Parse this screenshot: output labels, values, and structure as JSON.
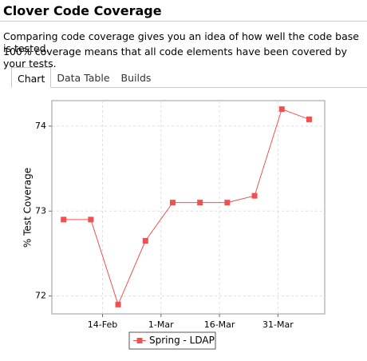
{
  "header": {
    "title": "Clover Code Coverage"
  },
  "description": [
    "Comparing code coverage gives you an idea of how well the code base is tested.",
    "100% coverage means that all code elements have been covered by your tests."
  ],
  "tabs": [
    "Chart",
    "Data Table",
    "Builds"
  ],
  "chart_data": {
    "type": "line",
    "y_label": "% Test Coverage",
    "x": [
      "4-Feb",
      "11-Feb",
      "18-Feb",
      "25-Feb",
      "4-Mar",
      "11-Mar",
      "18-Mar",
      "25-Mar",
      "1-Apr",
      "8-Apr"
    ],
    "series": [
      {
        "name": "Spring - LDAP",
        "color": "#f05050",
        "values": [
          72.9,
          72.9,
          71.9,
          72.65,
          73.1,
          73.1,
          73.1,
          73.18,
          74.2,
          74.08
        ]
      }
    ],
    "xlim": [
      "1-Feb",
      "12-Apr"
    ],
    "xticks": [
      "14-Feb",
      "1-Mar",
      "16-Mar",
      "31-Mar"
    ],
    "ylim": [
      71.79,
      74.3
    ],
    "yticks": [
      72,
      73,
      74
    ],
    "grid": true,
    "legend": "bottom"
  }
}
